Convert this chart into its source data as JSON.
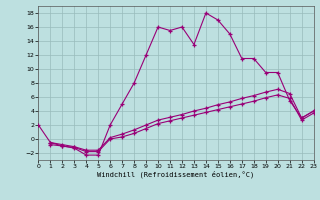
{
  "xlabel": "Windchill (Refroidissement éolien,°C)",
  "bg_color": "#bde0e0",
  "line_color": "#990077",
  "grid_color": "#99bbbb",
  "xlim": [
    0,
    23
  ],
  "ylim": [
    -3,
    19
  ],
  "xticks": [
    0,
    1,
    2,
    3,
    4,
    5,
    6,
    7,
    8,
    9,
    10,
    11,
    12,
    13,
    14,
    15,
    16,
    17,
    18,
    19,
    20,
    21,
    22,
    23
  ],
  "yticks": [
    -2,
    0,
    2,
    4,
    6,
    8,
    10,
    12,
    14,
    16,
    18
  ],
  "line1_x": [
    0,
    1,
    2,
    3,
    4,
    5,
    6,
    7,
    8,
    9,
    10,
    11,
    12,
    13,
    14,
    15,
    16,
    17,
    18,
    19,
    20,
    21,
    22,
    23
  ],
  "line1_y": [
    2,
    -0.5,
    -1.0,
    -1.3,
    -2.3,
    -2.3,
    2.0,
    5.0,
    8.0,
    12.0,
    16.0,
    15.5,
    16.0,
    13.5,
    18.0,
    17.0,
    15.0,
    11.5,
    11.5,
    9.5,
    9.5,
    5.5,
    3.0,
    4.0
  ],
  "line2_x": [
    1,
    2,
    3,
    4,
    5,
    6,
    7,
    8,
    9,
    10,
    11,
    12,
    13,
    14,
    15,
    16,
    17,
    18,
    19,
    20,
    21,
    22,
    23
  ],
  "line2_y": [
    -0.5,
    -0.8,
    -1.1,
    -1.6,
    -1.6,
    0.2,
    0.7,
    1.3,
    2.0,
    2.7,
    3.1,
    3.5,
    4.0,
    4.4,
    4.9,
    5.3,
    5.8,
    6.2,
    6.7,
    7.1,
    6.5,
    3.0,
    4.0
  ],
  "line3_x": [
    1,
    2,
    3,
    4,
    5,
    6,
    7,
    8,
    9,
    10,
    11,
    12,
    13,
    14,
    15,
    16,
    17,
    18,
    19,
    20,
    21,
    22,
    23
  ],
  "line3_y": [
    -0.8,
    -1.0,
    -1.2,
    -1.8,
    -1.8,
    0.0,
    0.3,
    0.8,
    1.5,
    2.2,
    2.6,
    3.0,
    3.4,
    3.8,
    4.2,
    4.6,
    5.0,
    5.4,
    5.9,
    6.3,
    5.8,
    2.7,
    3.7
  ]
}
